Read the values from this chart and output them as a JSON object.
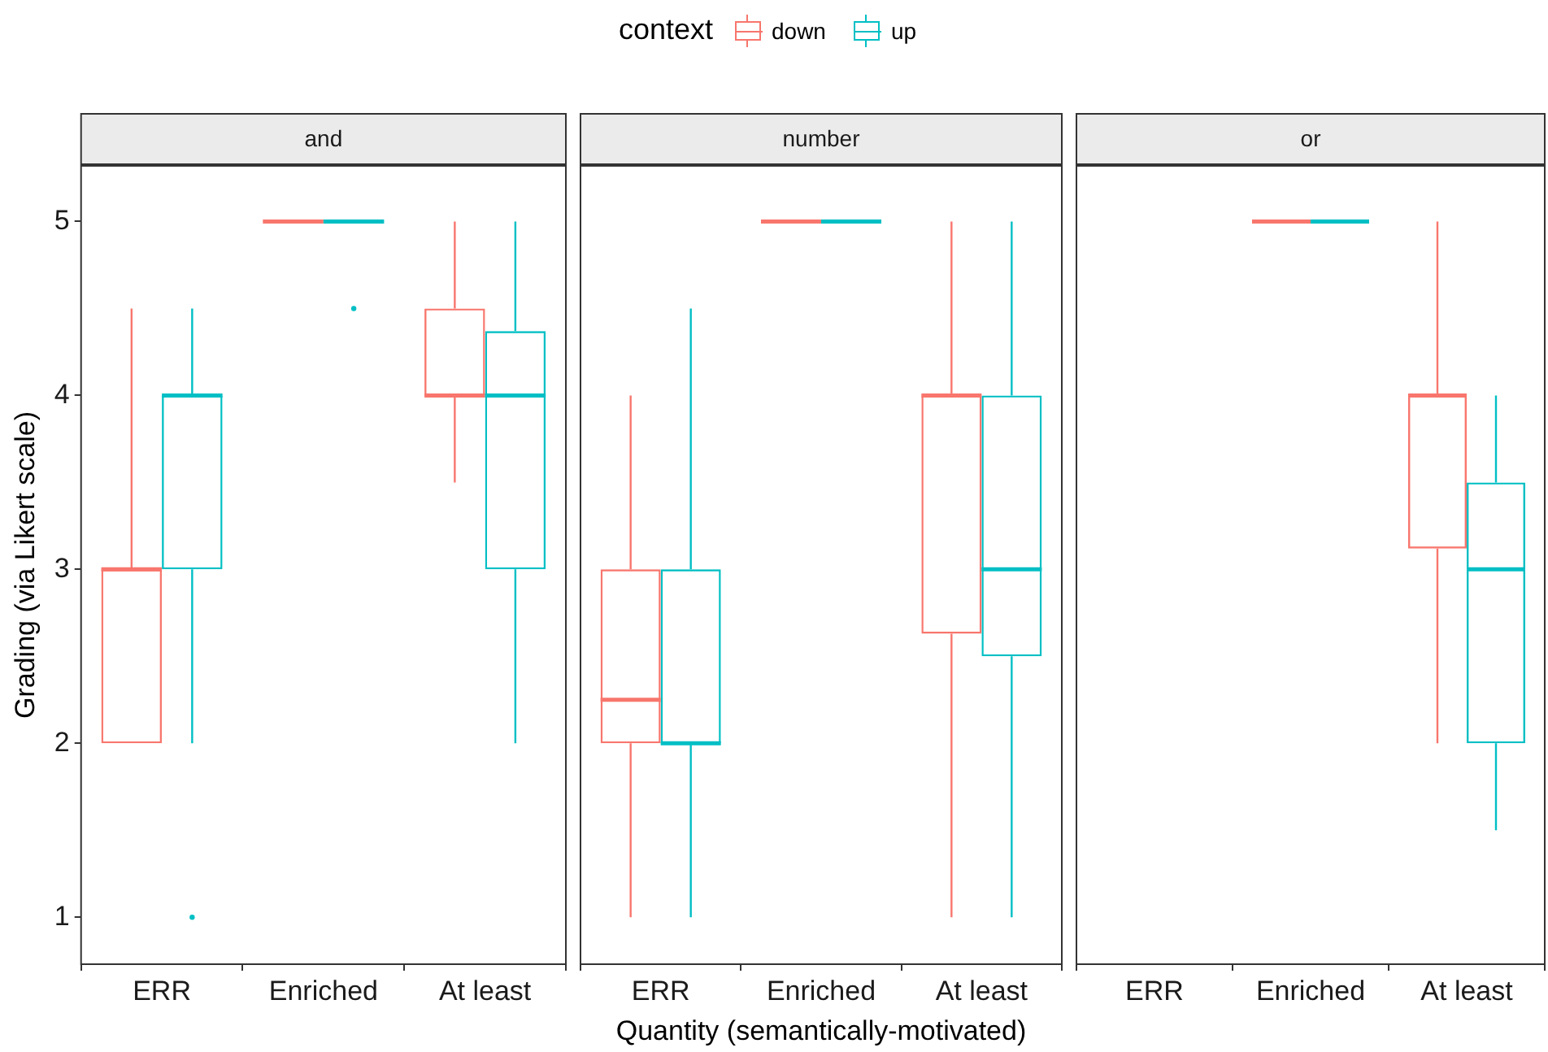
{
  "chart_data": [
    {
      "type": "box",
      "title": "and",
      "ylabel": "Grading (via Likert scale)",
      "legend_title": "context",
      "legend": "top",
      "categories": [
        "ERR",
        "Enriched",
        "At least"
      ],
      "ylim": [
        0.73,
        5.32
      ],
      "yticks": [
        1,
        2,
        3,
        4,
        5
      ],
      "series": [
        {
          "name": "down",
          "color": "#f8766d",
          "boxes": [
            {
              "low": 2,
              "q1": 2,
              "median": 3,
              "q3": 3,
              "high": 4.5
            },
            {
              "low": 5,
              "q1": 5,
              "median": 5,
              "q3": 5,
              "high": 5
            },
            {
              "low": 3.5,
              "q1": 4,
              "median": 4,
              "q3": 4.5,
              "high": 5
            }
          ]
        },
        {
          "name": "up",
          "color": "#00bfc4",
          "boxes": [
            {
              "low": 2,
              "q1": 3,
              "median": 4,
              "q3": 4,
              "high": 4.5,
              "outliers": [
                1
              ]
            },
            {
              "low": 5,
              "q1": 5,
              "median": 5,
              "q3": 5,
              "high": 5,
              "outliers": [
                4.5
              ]
            },
            {
              "low": 2,
              "q1": 3,
              "median": 4,
              "q3": 4.37,
              "high": 5
            }
          ]
        }
      ]
    },
    {
      "type": "box",
      "title": "number",
      "xlabel": "Quantity (semantically-motivated)",
      "tick_labels": "x",
      "categories": [
        "ERR",
        "Enriched",
        "At least"
      ],
      "ylim": [
        0.73,
        5.32
      ],
      "yticks": [
        1,
        2,
        3,
        4,
        5
      ],
      "series": [
        {
          "color": "#f8766d",
          "boxes": [
            {
              "low": 1,
              "q1": 2,
              "median": 2.25,
              "q3": 3,
              "high": 4
            },
            {
              "low": 5,
              "q1": 5,
              "median": 5,
              "q3": 5,
              "high": 5
            },
            {
              "low": 1,
              "q1": 2.63,
              "median": 4,
              "q3": 4,
              "high": 5
            }
          ]
        },
        {
          "color": "#00bfc4",
          "boxes": [
            {
              "low": 1,
              "q1": 2,
              "median": 2,
              "q3": 3,
              "high": 4.5
            },
            {
              "low": 5,
              "q1": 5,
              "median": 5,
              "q3": 5,
              "high": 5
            },
            {
              "low": 1,
              "q1": 2.5,
              "median": 3,
              "q3": 4,
              "high": 5
            }
          ]
        }
      ]
    },
    {
      "type": "box",
      "title": "or",
      "tick_labels": "x",
      "categories": [
        "ERR",
        "Enriched",
        "At least"
      ],
      "ylim": [
        0.73,
        5.32
      ],
      "yticks": [
        1,
        2,
        3,
        4,
        5
      ],
      "series": [
        {
          "color": "#f8766d",
          "boxes": [
            null,
            {
              "low": 5,
              "q1": 5,
              "median": 5,
              "q3": 5,
              "high": 5
            },
            {
              "low": 2,
              "q1": 3.12,
              "median": 4,
              "q3": 4,
              "high": 5
            }
          ]
        },
        {
          "color": "#00bfc4",
          "boxes": [
            null,
            {
              "low": 5,
              "q1": 5,
              "median": 5,
              "q3": 5,
              "high": 5
            },
            {
              "low": 1.5,
              "q1": 2,
              "median": 3,
              "q3": 3.5,
              "high": 4
            }
          ]
        }
      ]
    }
  ]
}
